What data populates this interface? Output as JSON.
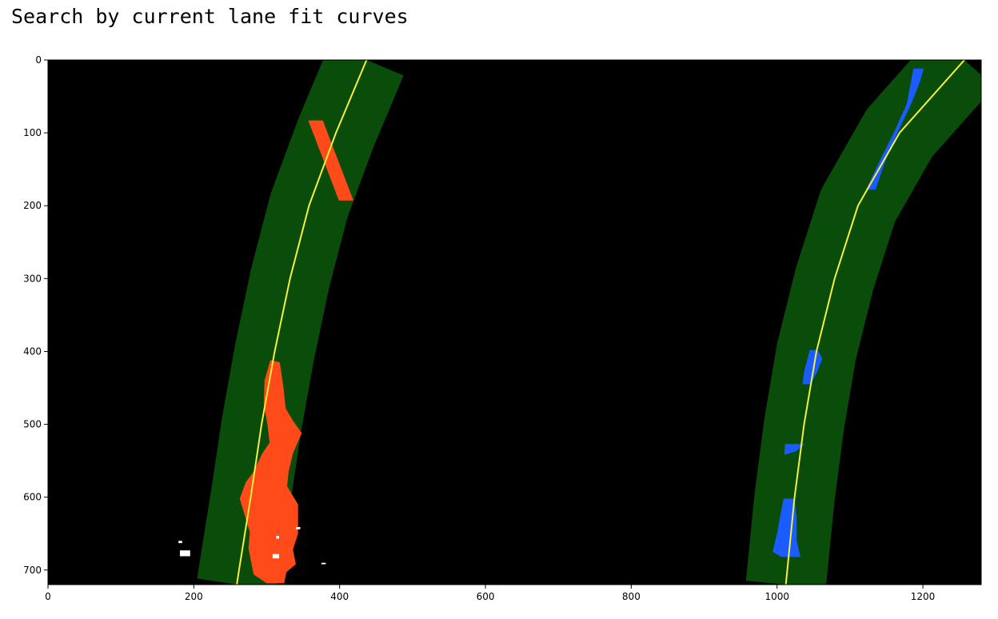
{
  "page_title": "Search by current lane fit curves",
  "chart_data": {
    "type": "image",
    "title": "",
    "xlabel": "",
    "ylabel": "",
    "xlim": [
      0,
      1280
    ],
    "ylim": [
      720,
      0
    ],
    "x_ticks": [
      0,
      200,
      400,
      600,
      800,
      1000,
      1200
    ],
    "y_ticks": [
      0,
      100,
      200,
      300,
      400,
      500,
      600,
      700
    ],
    "search_margin": 55,
    "colors": {
      "background": "#000000",
      "search_window": "#0a4d0a",
      "left_pixels": "#ff4a19",
      "right_pixels": "#1a5cff",
      "fit_curve": "#f5f03c",
      "noise": "#ffffff"
    },
    "lane_fits": [
      {
        "name": "left",
        "points": [
          [
            437,
            0
          ],
          [
            395,
            100
          ],
          [
            358,
            200
          ],
          [
            332,
            300
          ],
          [
            311,
            400
          ],
          [
            293,
            500
          ],
          [
            278,
            600
          ],
          [
            262,
            700
          ],
          [
            259,
            720
          ]
        ]
      },
      {
        "name": "right",
        "points": [
          [
            1257,
            0
          ],
          [
            1168,
            100
          ],
          [
            1111,
            200
          ],
          [
            1079,
            300
          ],
          [
            1054,
            400
          ],
          [
            1037,
            500
          ],
          [
            1024,
            600
          ],
          [
            1014,
            700
          ],
          [
            1012,
            720
          ]
        ]
      }
    ],
    "left_pixel_regions": [
      [
        [
          357,
          83
        ],
        [
          377,
          83
        ],
        [
          419,
          193
        ],
        [
          399,
          193
        ]
      ],
      [
        [
          305,
          412
        ],
        [
          318,
          415
        ],
        [
          323,
          450
        ],
        [
          326,
          478
        ],
        [
          336,
          495
        ],
        [
          348,
          512
        ],
        [
          336,
          540
        ],
        [
          330,
          565
        ],
        [
          328,
          585
        ],
        [
          343,
          610
        ],
        [
          343,
          650
        ],
        [
          336,
          672
        ],
        [
          340,
          692
        ],
        [
          327,
          703
        ],
        [
          324,
          718
        ],
        [
          300,
          718
        ],
        [
          282,
          706
        ],
        [
          275,
          670
        ],
        [
          277,
          648
        ],
        [
          272,
          632
        ],
        [
          263,
          602
        ],
        [
          271,
          580
        ],
        [
          282,
          565
        ],
        [
          294,
          540
        ],
        [
          304,
          525
        ],
        [
          301,
          500
        ],
        [
          296,
          472
        ],
        [
          297,
          440
        ]
      ]
    ],
    "right_pixel_regions": [
      [
        [
          1187,
          12
        ],
        [
          1201,
          12
        ],
        [
          1196,
          30
        ],
        [
          1184,
          60
        ],
        [
          1165,
          100
        ],
        [
          1148,
          140
        ],
        [
          1135,
          178
        ],
        [
          1122,
          178
        ],
        [
          1140,
          140
        ],
        [
          1160,
          100
        ],
        [
          1178,
          60
        ]
      ],
      [
        [
          1045,
          398
        ],
        [
          1056,
          398
        ],
        [
          1062,
          410
        ],
        [
          1055,
          428
        ],
        [
          1046,
          445
        ],
        [
          1035,
          445
        ],
        [
          1037,
          428
        ]
      ],
      [
        [
          1011,
          527
        ],
        [
          1038,
          527
        ],
        [
          1026,
          537
        ],
        [
          1010,
          542
        ]
      ],
      [
        [
          1009,
          602
        ],
        [
          1024,
          602
        ],
        [
          1027,
          628
        ],
        [
          1027,
          660
        ],
        [
          1032,
          682
        ],
        [
          1006,
          682
        ],
        [
          994,
          675
        ],
        [
          1000,
          650
        ],
        [
          1005,
          622
        ]
      ]
    ],
    "noise_regions": [
      [
        [
          181,
          673
        ],
        [
          195,
          673
        ],
        [
          195,
          681
        ],
        [
          181,
          681
        ]
      ],
      [
        [
          179,
          660
        ],
        [
          184,
          660
        ],
        [
          184,
          663
        ],
        [
          179,
          663
        ]
      ],
      [
        [
          308,
          678
        ],
        [
          317,
          678
        ],
        [
          317,
          684
        ],
        [
          308,
          684
        ]
      ],
      [
        [
          340,
          641
        ],
        [
          346,
          641
        ],
        [
          346,
          644
        ],
        [
          340,
          644
        ]
      ],
      [
        [
          313,
          653
        ],
        [
          317,
          653
        ],
        [
          317,
          657
        ],
        [
          313,
          657
        ]
      ],
      [
        [
          375,
          690
        ],
        [
          381,
          690
        ],
        [
          381,
          692
        ],
        [
          375,
          692
        ]
      ]
    ]
  }
}
